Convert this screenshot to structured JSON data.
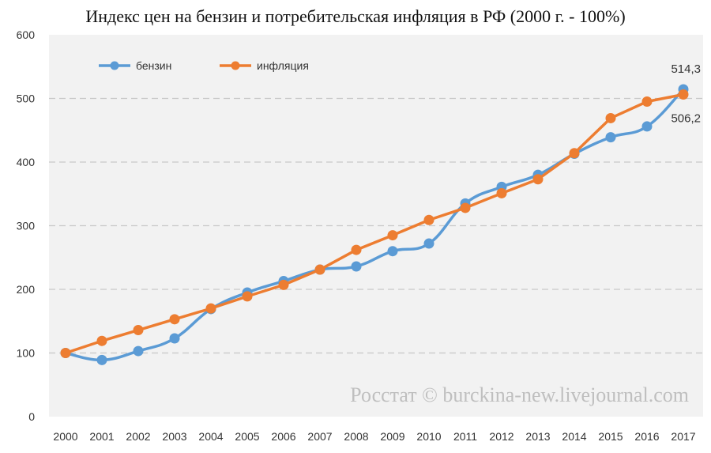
{
  "chart_data": {
    "type": "line",
    "title": "Индекс цен на бензин и потребительская инфляция в РФ (2000 г. - 100%)",
    "categories": [
      "2000",
      "2001",
      "2002",
      "2003",
      "2004",
      "2005",
      "2006",
      "2007",
      "2008",
      "2009",
      "2010",
      "2011",
      "2012",
      "2013",
      "2014",
      "2015",
      "2016",
      "2017"
    ],
    "series": [
      {
        "name": "бензин",
        "color": "#5B9BD5",
        "values": [
          100,
          89,
          103,
          123,
          169,
          195,
          213,
          231,
          236,
          260,
          272,
          335,
          361,
          380,
          413,
          439,
          456,
          514.3
        ]
      },
      {
        "name": "инфляция",
        "color": "#ED7D31",
        "values": [
          100,
          119,
          136,
          153,
          170,
          189,
          207,
          231,
          262,
          285,
          309,
          328,
          351,
          373,
          414,
          469,
          495,
          506.2
        ]
      }
    ],
    "ylim": [
      0,
      600
    ],
    "yticks": [
      0,
      100,
      200,
      300,
      400,
      500,
      600
    ],
    "grid": true,
    "legend": "top-left",
    "data_labels": [
      {
        "series": "бензин",
        "index": 17,
        "text": "514,3"
      },
      {
        "series": "инфляция",
        "index": 17,
        "text": "506,2"
      }
    ],
    "annotation": "Росстат © burckina-new.livejournal.com",
    "plot_background": "#F2F2F2"
  }
}
